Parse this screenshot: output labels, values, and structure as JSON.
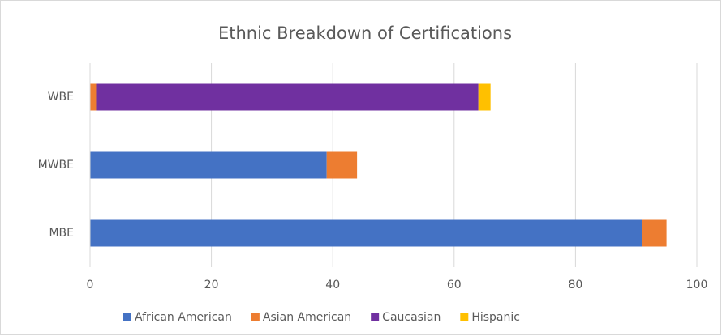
{
  "chart_data": {
    "type": "stacked_barh",
    "title": "Ethnic Breakdown of Certifications",
    "categories": [
      "MBE",
      "MWBE",
      "WBE"
    ],
    "series": [
      {
        "name": "African American",
        "color": "#4472c4",
        "values": [
          91,
          39,
          0
        ]
      },
      {
        "name": "Asian American",
        "color": "#ed7d31",
        "values": [
          4,
          5,
          1
        ]
      },
      {
        "name": "Caucasian",
        "color": "#7030a0",
        "values": [
          0,
          0,
          63
        ]
      },
      {
        "name": "Hispanic",
        "color": "#ffc000",
        "values": [
          0,
          0,
          2
        ]
      }
    ],
    "xlim": [
      0,
      100
    ],
    "xticks": [
      0,
      20,
      40,
      60,
      80,
      100
    ],
    "grid": true,
    "legend": "bottom"
  }
}
